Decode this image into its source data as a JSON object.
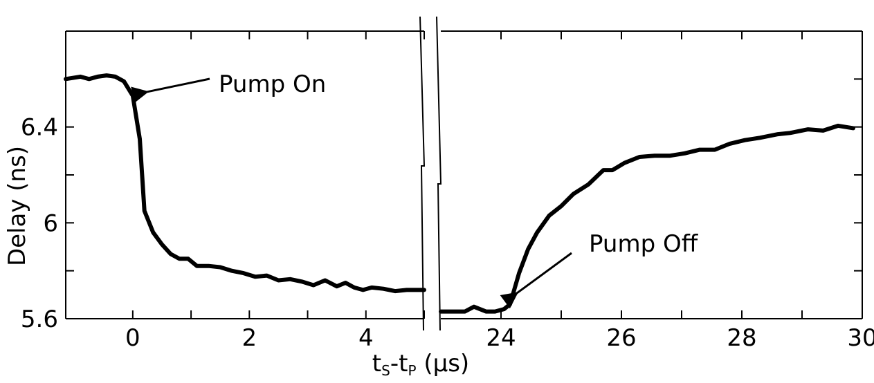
{
  "chart_data": {
    "type": "line",
    "ylabel": "Delay (ns)",
    "xlabel": {
      "t": "t",
      "s": "S",
      "dash": "-t",
      "p": "P",
      "unit": " (µs)"
    },
    "ylim": [
      5.6,
      6.8
    ],
    "yticks": [
      5.6,
      5.8,
      6.0,
      6.2,
      6.4,
      6.6
    ],
    "ytick_labels": [
      "5.6",
      "",
      "6",
      "",
      "6.4",
      ""
    ],
    "panels": [
      {
        "xlim": [
          -1.15,
          5.0
        ],
        "xticks": [
          0,
          1,
          2,
          3,
          4,
          5
        ],
        "xtick_labels": [
          "0",
          "",
          "2",
          "",
          "4",
          ""
        ],
        "x": [
          -1.15,
          -0.9,
          -0.75,
          -0.6,
          -0.45,
          -0.3,
          -0.15,
          0.0,
          0.12,
          0.2,
          0.35,
          0.5,
          0.65,
          0.8,
          0.95,
          1.1,
          1.3,
          1.5,
          1.7,
          1.9,
          2.1,
          2.3,
          2.5,
          2.7,
          2.9,
          3.1,
          3.3,
          3.5,
          3.65,
          3.8,
          3.95,
          4.1,
          4.3,
          4.5,
          4.7,
          5.0
        ],
        "y": [
          6.6,
          6.61,
          6.6,
          6.61,
          6.615,
          6.61,
          6.59,
          6.53,
          6.35,
          6.05,
          5.96,
          5.91,
          5.87,
          5.85,
          5.85,
          5.82,
          5.82,
          5.815,
          5.8,
          5.79,
          5.775,
          5.78,
          5.76,
          5.765,
          5.755,
          5.74,
          5.76,
          5.735,
          5.75,
          5.73,
          5.72,
          5.73,
          5.725,
          5.715,
          5.72,
          5.72
        ]
      },
      {
        "xlim": [
          23.0,
          30.0
        ],
        "xticks": [
          24,
          25,
          26,
          27,
          28,
          29,
          30
        ],
        "xtick_labels": [
          "24",
          "",
          "26",
          "",
          "28",
          "",
          "30"
        ],
        "x": [
          23.0,
          23.4,
          23.55,
          23.75,
          23.9,
          24.05,
          24.15,
          24.3,
          24.45,
          24.6,
          24.8,
          25.0,
          25.2,
          25.45,
          25.7,
          25.85,
          26.05,
          26.3,
          26.55,
          26.8,
          27.05,
          27.3,
          27.55,
          27.8,
          28.05,
          28.3,
          28.6,
          28.8,
          29.1,
          29.35,
          29.6,
          29.85
        ],
        "y": [
          5.63,
          5.63,
          5.65,
          5.63,
          5.63,
          5.64,
          5.66,
          5.79,
          5.89,
          5.96,
          6.03,
          6.07,
          6.12,
          6.16,
          6.22,
          6.22,
          6.25,
          6.275,
          6.28,
          6.28,
          6.29,
          6.305,
          6.305,
          6.33,
          6.345,
          6.355,
          6.37,
          6.375,
          6.39,
          6.385,
          6.405,
          6.395
        ]
      }
    ],
    "annotations": [
      {
        "text": "Pump On",
        "x": 0.1,
        "y": 6.555
      },
      {
        "text": "Pump Off",
        "x": 24.1,
        "y": 5.66
      }
    ]
  }
}
